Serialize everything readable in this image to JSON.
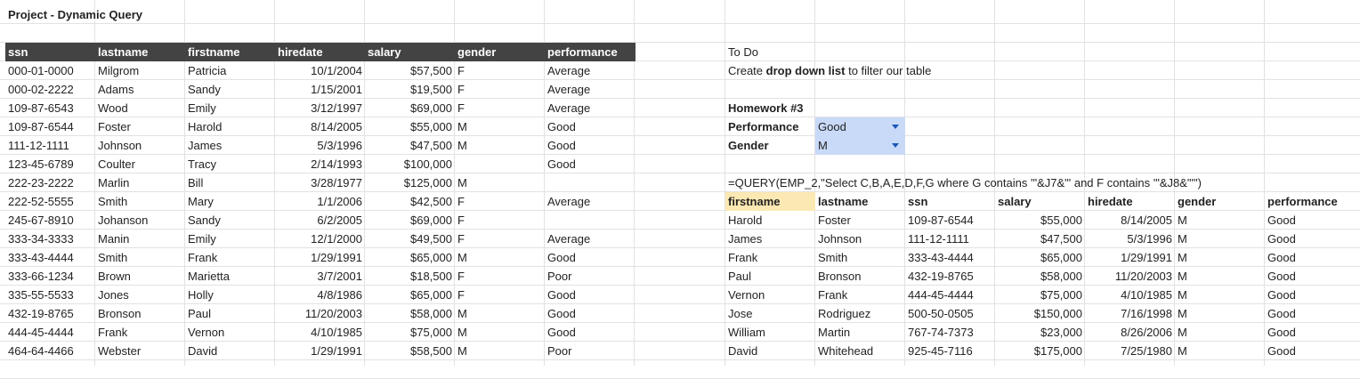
{
  "title": "Project - Dynamic Query",
  "left_table": {
    "headers": [
      "ssn",
      "lastname",
      "firstname",
      "hiredate",
      "salary",
      "gender",
      "performance"
    ],
    "rows": [
      [
        "000-01-0000",
        "Milgrom",
        "Patricia",
        "10/1/2004",
        "$57,500",
        "F",
        "Average"
      ],
      [
        "000-02-2222",
        "Adams",
        "Sandy",
        "1/15/2001",
        "$19,500",
        "F",
        "Average"
      ],
      [
        "109-87-6543",
        "Wood",
        "Emily",
        "3/12/1997",
        "$69,000",
        "F",
        "Average"
      ],
      [
        "109-87-6544",
        "Foster",
        "Harold",
        "8/14/2005",
        "$55,000",
        "M",
        "Good"
      ],
      [
        "111-12-1111",
        "Johnson",
        "James",
        "5/3/1996",
        "$47,500",
        "M",
        "Good"
      ],
      [
        "123-45-6789",
        "Coulter",
        "Tracy",
        "2/14/1993",
        "$100,000",
        "",
        "Good"
      ],
      [
        "222-23-2222",
        "Marlin",
        "Bill",
        "3/28/1977",
        "$125,000",
        "M",
        ""
      ],
      [
        "222-52-5555",
        "Smith",
        "Mary",
        "1/1/2006",
        "$42,500",
        "F",
        "Average"
      ],
      [
        "245-67-8910",
        "Johanson",
        "Sandy",
        "6/2/2005",
        "$69,000",
        "F",
        ""
      ],
      [
        "333-34-3333",
        "Manin",
        "Emily",
        "12/1/2000",
        "$49,500",
        "F",
        "Average"
      ],
      [
        "333-43-4444",
        "Smith",
        "Frank",
        "1/29/1991",
        "$65,000",
        "M",
        "Good"
      ],
      [
        "333-66-1234",
        "Brown",
        "Marietta",
        "3/7/2001",
        "$18,500",
        "F",
        "Poor"
      ],
      [
        "335-55-5533",
        "Jones",
        "Holly",
        "4/8/1986",
        "$65,000",
        "F",
        "Good"
      ],
      [
        "432-19-8765",
        "Bronson",
        "Paul",
        "11/20/2003",
        "$58,000",
        "M",
        "Good"
      ],
      [
        "444-45-4444",
        "Frank",
        "Vernon",
        "4/10/1985",
        "$75,000",
        "M",
        "Good"
      ],
      [
        "464-64-4466",
        "Webster",
        "David",
        "1/29/1991",
        "$58,500",
        "M",
        "Poor"
      ]
    ]
  },
  "todo": {
    "heading": "To Do",
    "line_pre": "Create ",
    "line_bold": "drop down list",
    "line_post": " to filter our table"
  },
  "homework": {
    "title": "Homework #3",
    "performance_label": "Performance",
    "performance_value": "Good",
    "gender_label": "Gender",
    "gender_value": "M"
  },
  "formula": "=QUERY(EMP_2,\"Select C,B,A,E,D,F,G where G contains '\"&J7&\"' and F contains '\"&J8&\"'\")",
  "result_table": {
    "headers": [
      "firstname",
      "lastname",
      "ssn",
      "salary",
      "hiredate",
      "gender",
      "performance"
    ],
    "rows": [
      [
        "Harold",
        "Foster",
        "109-87-6544",
        "$55,000",
        "8/14/2005",
        "M",
        "Good"
      ],
      [
        "James",
        "Johnson",
        "111-12-1111",
        "$47,500",
        "5/3/1996",
        "M",
        "Good"
      ],
      [
        "Frank",
        "Smith",
        "333-43-4444",
        "$65,000",
        "1/29/1991",
        "M",
        "Good"
      ],
      [
        "Paul",
        "Bronson",
        "432-19-8765",
        "$58,000",
        "11/20/2003",
        "M",
        "Good"
      ],
      [
        "Vernon",
        "Frank",
        "444-45-4444",
        "$75,000",
        "4/10/1985",
        "M",
        "Good"
      ],
      [
        "Jose",
        "Rodriguez",
        "500-50-0505",
        "$150,000",
        "7/16/1998",
        "M",
        "Good"
      ],
      [
        "William",
        "Martin",
        "767-74-7373",
        "$23,000",
        "8/26/2006",
        "M",
        "Good"
      ],
      [
        "David",
        "Whitehead",
        "925-45-7116",
        "$175,000",
        "7/25/1980",
        "M",
        "Good"
      ]
    ]
  },
  "colors": {
    "header_bg": "#434343",
    "dropdown_bg": "#c9daf8",
    "highlight_bg": "#fce8b2",
    "gridline": "#e2e2e2"
  }
}
